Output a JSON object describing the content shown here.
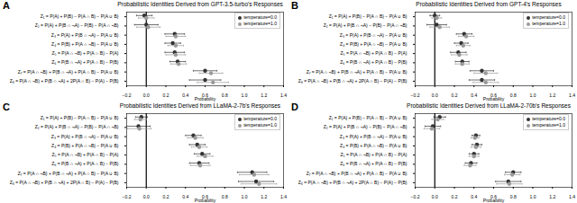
{
  "chart_data": [
    {
      "type": "scatter",
      "panel": "A",
      "title": "Probabilistic Identities Derived from GPT-3.5-turbo's Responses",
      "x_label": "Probability",
      "categories": [
        "Z₁ = P(A) + P(B) − P(A ∩ B) − P(A ∪ B)",
        "Z₂ = P(A) + P(B ∩ ¬A) − P(B) − P(A ∩ ¬B)",
        "Z₃ = P(A) + P(B ∩ ¬A) − P(A ∪ B)",
        "Z₄ = P(B) + P(A ∩ ¬B) − P(A ∪ B)",
        "Z₅ = P(A ∩ ¬B) + P(A ∩ B) − P(A)",
        "Z₆ = P(B ∩ ¬A) + P(A ∩ B) − P(B)",
        "Z₇ = P(A ∩ ¬B) + P(B ∩ ¬A) + P(A ∩ B) − P(A ∪ B)",
        "Z₈ = P(A ∩ ¬B) + P(B ∩ ¬A) + 2P(A ∩ B) − P(A) − P(B)"
      ],
      "xlim": [
        -0.2,
        1.4
      ],
      "xticks": [
        {
          "value": -0.2,
          "label": "−0.2"
        },
        {
          "value": 0,
          "label": "0.0"
        },
        {
          "value": 0.2,
          "label": "0.2"
        },
        {
          "value": 0.4,
          "label": "0.4"
        },
        {
          "value": 0.6,
          "label": "0.6"
        },
        {
          "value": 0.8,
          "label": "0.8"
        },
        {
          "value": 1.0,
          "label": "1.0"
        },
        {
          "value": 1.2,
          "label": "1.2"
        },
        {
          "value": 1.4,
          "label": "1.4"
        }
      ],
      "reference_x": 0,
      "legend": "upper right",
      "series": [
        {
          "name": "temperature=0.0",
          "color": "#333333",
          "values": [
            -0.02,
            0.0,
            0.29,
            0.27,
            0.29,
            0.32,
            0.6,
            0.6
          ],
          "errors": [
            0.08,
            0.12,
            0.1,
            0.08,
            0.1,
            0.08,
            0.12,
            0.16
          ]
        },
        {
          "name": "temperature=1.0",
          "color": "#9a9a9a",
          "values": [
            0.0,
            0.02,
            0.3,
            0.3,
            0.3,
            0.33,
            0.66,
            0.68
          ],
          "errors": [
            0.08,
            0.12,
            0.1,
            0.08,
            0.1,
            0.08,
            0.12,
            0.16
          ]
        }
      ]
    },
    {
      "type": "scatter",
      "panel": "B",
      "title": "Probabilistic Identities Derived from GPT-4's Responses",
      "x_label": "Probability",
      "categories": [
        "Z₁ = P(A) + P(B) − P(A ∩ B) − P(A ∪ B)",
        "Z₂ = P(A) + P(B ∩ ¬A) − P(B) − P(A ∩ ¬B)",
        "Z₃ = P(A) + P(B ∩ ¬A) − P(A ∪ B)",
        "Z₄ = P(B) + P(A ∩ ¬B) − P(A ∪ B)",
        "Z₅ = P(A ∩ ¬B) + P(A ∩ B) − P(A)",
        "Z₆ = P(B ∩ ¬A) + P(A ∩ B) − P(B)",
        "Z₇ = P(A ∩ ¬B) + P(B ∩ ¬A) + P(A ∩ B) − P(A ∪ B)",
        "Z₈ = P(A ∩ ¬B) + P(B ∩ ¬A) + 2P(A ∩ B) − P(A) − P(B)"
      ],
      "xlim": [
        -0.2,
        1.4
      ],
      "xticks": [
        {
          "value": -0.2,
          "label": "−0.2"
        },
        {
          "value": 0,
          "label": "0.0"
        },
        {
          "value": 0.2,
          "label": "0.2"
        },
        {
          "value": 0.4,
          "label": "0.4"
        },
        {
          "value": 0.6,
          "label": "0.6"
        },
        {
          "value": 0.8,
          "label": "0.8"
        },
        {
          "value": 1.0,
          "label": "1.0"
        },
        {
          "value": 1.2,
          "label": "1.2"
        },
        {
          "value": 1.4,
          "label": "1.4"
        }
      ],
      "reference_x": 0,
      "legend": "upper right",
      "series": [
        {
          "name": "temperature=0.0",
          "color": "#333333",
          "values": [
            0.0,
            0.02,
            0.3,
            0.27,
            0.24,
            0.28,
            0.48,
            0.48
          ],
          "errors": [
            0.05,
            0.1,
            0.08,
            0.07,
            0.08,
            0.07,
            0.12,
            0.13
          ]
        },
        {
          "name": "temperature=1.0",
          "color": "#9a9a9a",
          "values": [
            0.02,
            0.05,
            0.32,
            0.29,
            0.25,
            0.28,
            0.52,
            0.52
          ],
          "errors": [
            0.05,
            0.1,
            0.08,
            0.07,
            0.08,
            0.07,
            0.12,
            0.13
          ]
        }
      ]
    },
    {
      "type": "scatter",
      "panel": "C",
      "title": "Probabilistic Identities Derived from LLaMA-2-7b's Responses",
      "x_label": "Probability",
      "categories": [
        "Z₁ = P(A) + P(B) − P(A ∩ B) − P(A ∪ B)",
        "Z₂ = P(A) + P(B ∩ ¬A) − P(B) − P(A ∩ ¬B)",
        "Z₃ = P(A) + P(B ∩ ¬A) − P(A ∪ B)",
        "Z₄ = P(B) + P(A ∩ ¬B) − P(A ∪ B)",
        "Z₅ = P(A ∩ ¬B) + P(A ∩ B) − P(A)",
        "Z₆ = P(B ∩ ¬A) + P(A ∩ B) − P(B)",
        "Z₇ = P(A ∩ ¬B) + P(B ∩ ¬A) + P(A ∩ B) − P(A ∪ B)",
        "Z₈ = P(A ∩ ¬B) + P(B ∩ ¬A) + 2P(A ∩ B) − P(A) − P(B)"
      ],
      "xlim": [
        -0.2,
        1.4
      ],
      "xticks": [
        {
          "value": -0.2,
          "label": "−0.2"
        },
        {
          "value": 0,
          "label": "0.0"
        },
        {
          "value": 0.2,
          "label": "0.2"
        },
        {
          "value": 0.4,
          "label": "0.4"
        },
        {
          "value": 0.6,
          "label": "0.6"
        },
        {
          "value": 0.8,
          "label": "0.8"
        },
        {
          "value": 1.0,
          "label": "1.0"
        },
        {
          "value": 1.2,
          "label": "1.2"
        },
        {
          "value": 1.4,
          "label": "1.4"
        }
      ],
      "reference_x": 0,
      "legend": "upper right",
      "series": [
        {
          "name": "temperature=0.0",
          "color": "#333333",
          "values": [
            -0.05,
            -0.08,
            0.48,
            0.52,
            0.57,
            0.54,
            1.08,
            1.12
          ],
          "errors": [
            0.06,
            0.12,
            0.08,
            0.08,
            0.08,
            0.1,
            0.15,
            0.18
          ]
        },
        {
          "name": "temperature=1.0",
          "color": "#9a9a9a",
          "values": [
            -0.06,
            -0.07,
            0.5,
            0.54,
            0.6,
            0.55,
            1.1,
            1.15
          ],
          "errors": [
            0.06,
            0.12,
            0.08,
            0.08,
            0.08,
            0.1,
            0.15,
            0.18
          ]
        }
      ]
    },
    {
      "type": "scatter",
      "panel": "D",
      "title": "Probabilistic Identities Derived from LLaMA-2-70b's Responses",
      "x_label": "Probability",
      "categories": [
        "Z₁ = P(A) + P(B) − P(A ∩ B) − P(A ∪ B)",
        "Z₂ = P(A) + P(B ∩ ¬A) − P(B) − P(A ∩ ¬B)",
        "Z₃ = P(A) + P(B ∩ ¬A) − P(A ∪ B)",
        "Z₄ = P(B) + P(A ∩ ¬B) − P(A ∪ B)",
        "Z₅ = P(A ∩ ¬B) + P(A ∩ B) − P(A)",
        "Z₆ = P(B ∩ ¬A) + P(A ∩ B) − P(B)",
        "Z₇ = P(A ∩ ¬B) + P(B ∩ ¬A) + P(A ∩ B) − P(A ∪ B)",
        "Z₈ = P(A ∩ ¬B) + P(B ∩ ¬A) + 2P(A ∩ B) − P(A) − P(B)"
      ],
      "xlim": [
        -0.2,
        1.4
      ],
      "xticks": [
        {
          "value": -0.2,
          "label": "−0.2"
        },
        {
          "value": 0,
          "label": "0.0"
        },
        {
          "value": 0.2,
          "label": "0.2"
        },
        {
          "value": 0.4,
          "label": "0.4"
        },
        {
          "value": 0.6,
          "label": "0.6"
        },
        {
          "value": 0.8,
          "label": "0.8"
        },
        {
          "value": 1.0,
          "label": "1.0"
        },
        {
          "value": 1.2,
          "label": "1.2"
        },
        {
          "value": 1.4,
          "label": "1.4"
        }
      ],
      "reference_x": 0,
      "legend": "upper right",
      "series": [
        {
          "name": "temperature=0.0",
          "color": "#333333",
          "values": [
            0.05,
            -0.02,
            0.42,
            0.43,
            0.4,
            0.37,
            0.8,
            0.75
          ],
          "errors": [
            0.06,
            0.08,
            0.04,
            0.05,
            0.05,
            0.06,
            0.08,
            0.13
          ]
        },
        {
          "name": "temperature=1.0",
          "color": "#9a9a9a",
          "values": [
            0.03,
            -0.03,
            0.41,
            0.42,
            0.4,
            0.36,
            0.79,
            0.76
          ],
          "errors": [
            0.06,
            0.08,
            0.04,
            0.05,
            0.05,
            0.06,
            0.08,
            0.13
          ]
        }
      ]
    }
  ]
}
